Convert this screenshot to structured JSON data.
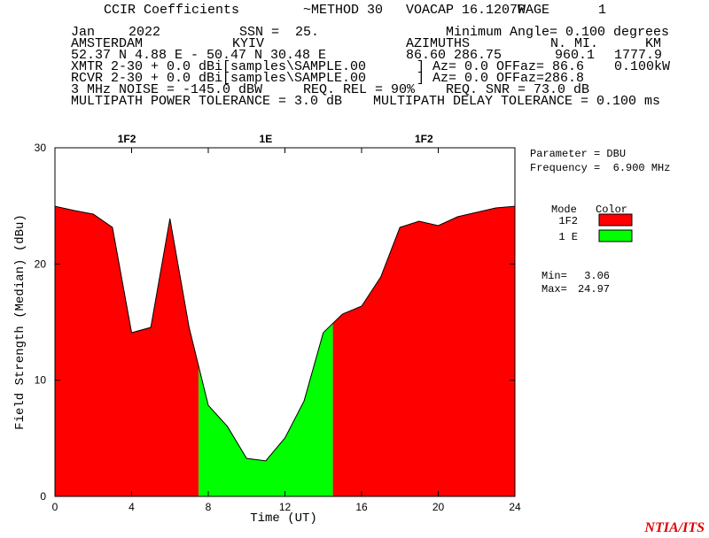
{
  "header": {
    "lines": [
      [
        "CCIR Coefficients",
        "~METHOD 30",
        "VOACAP 16.1207W",
        "PAGE",
        "1"
      ],
      [
        "Jan",
        "2022",
        "SSN =",
        "25.",
        "Minimum Angle= 0.100 degrees"
      ],
      [
        "AMSTERDAM",
        "KYIV",
        "AZIMUTHS",
        "N. MI.",
        "KM"
      ],
      [
        "52.37 N    4.88 E - 50.47 N   30.48 E",
        "86.60  286.75",
        "960.1",
        "1777.9"
      ],
      [
        "XMTR  2-30 +  0.0 dBi[samples\\SAMPLE.00",
        "] Az=  0.0 OFFaz= 86.6",
        "0.100kW"
      ],
      [
        "RCVR  2-30 +  0.0 dBi[samples\\SAMPLE.00",
        "] Az=  0.0 OFFaz=286.8"
      ],
      [
        "3 MHz NOISE = -145.0 dBW",
        "REQ. REL = 90%",
        "REQ. SNR = 73.0 dB"
      ],
      [
        "MULTIPATH POWER TOLERANCE =  3.0 dB",
        "MULTIPATH DELAY TOLERANCE =  0.100 ms"
      ]
    ]
  },
  "chart_data": {
    "type": "area",
    "x": [
      0,
      1,
      2,
      3,
      4,
      5,
      6,
      7,
      8,
      9,
      10,
      11,
      12,
      13,
      14,
      15,
      16,
      17,
      18,
      19,
      20,
      21,
      22,
      23,
      24
    ],
    "series": [
      {
        "name": "1F2",
        "color": "#ff0000",
        "values": [
          24.97,
          24.6,
          24.29,
          23.15,
          14.09,
          14.54,
          23.9,
          14.54,
          null,
          null,
          null,
          null,
          null,
          null,
          null,
          15.69,
          16.37,
          18.88,
          23.15,
          23.68,
          23.3,
          24.06,
          24.44,
          24.82,
          24.97
        ]
      },
      {
        "name": "1 E",
        "color": "#00ff00",
        "values": [
          null,
          null,
          null,
          null,
          null,
          null,
          null,
          null,
          7.84,
          6.02,
          3.27,
          3.06,
          5.03,
          8.22,
          14.09,
          null,
          null,
          null,
          null,
          null,
          null,
          null,
          null,
          null,
          null
        ]
      }
    ],
    "xlim": [
      0,
      24
    ],
    "xticks": [
      0,
      4,
      8,
      12,
      16,
      20,
      24
    ],
    "ylim": [
      0,
      30
    ],
    "yticks": [
      0,
      10,
      20,
      30
    ],
    "xlabel": "Time (UT)",
    "ylabel": "Field Strength (Median) (dBu)",
    "top_labels": [
      {
        "x": 3.75,
        "label": "1F2"
      },
      {
        "x": 11,
        "label": "1E"
      },
      {
        "x": 19.25,
        "label": "1F2"
      }
    ],
    "parameter": "Parameter = DBU",
    "frequency": "Frequency =  6.900 MHz",
    "legend_title": [
      "Mode",
      "Color"
    ],
    "min_label": "Min=",
    "min": 3.06,
    "max_label": "Max=",
    "max": 24.97
  },
  "footer": "NTIA/ITS"
}
